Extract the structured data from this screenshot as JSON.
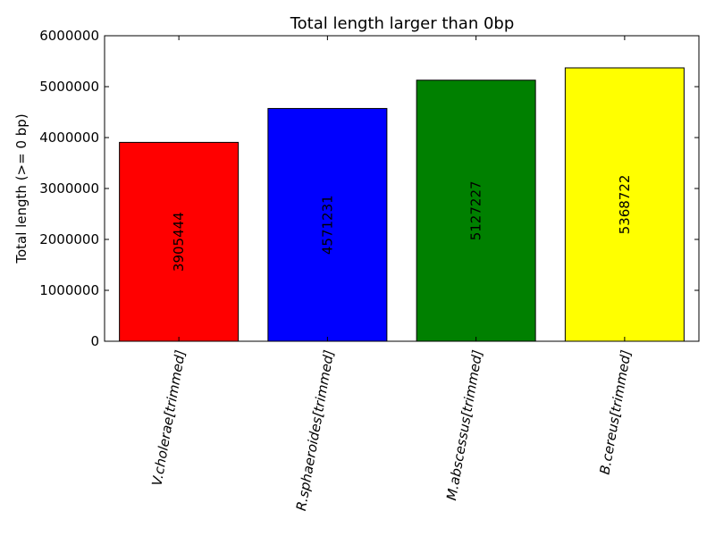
{
  "chart_data": {
    "type": "bar",
    "title": "Total length larger than 0bp",
    "xlabel": "",
    "ylabel": "Total length (>= 0 bp)",
    "ylim": [
      0,
      6000000
    ],
    "yticks": [
      0,
      1000000,
      2000000,
      3000000,
      4000000,
      5000000,
      6000000
    ],
    "ytick_labels": [
      "0",
      "1000000",
      "2000000",
      "3000000",
      "4000000",
      "5000000",
      "6000000"
    ],
    "grid": false,
    "categories": [
      "V.cholerae[trimmed]",
      "R.sphaeroides[trimmed]",
      "M.abscessus[trimmed]",
      "B.cereus[trimmed]"
    ],
    "values": [
      3905444,
      4571231,
      5127227,
      5368722
    ],
    "value_labels": [
      "3905444",
      "4571231",
      "5127227",
      "5368722"
    ],
    "colors": [
      "#ff0000",
      "#0000ff",
      "#008000",
      "#ffff00"
    ]
  }
}
